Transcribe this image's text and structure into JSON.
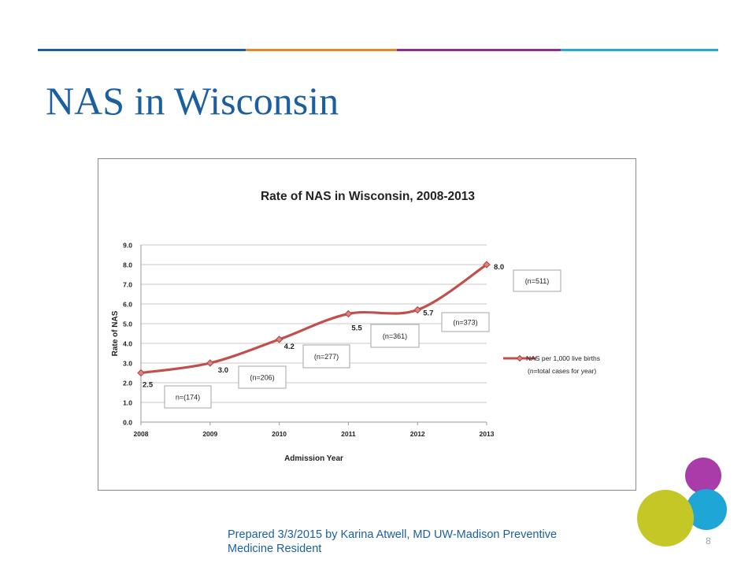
{
  "slide": {
    "title": "NAS in Wisconsin",
    "footer": "Prepared 3/3/2015 by Karina Atwell, MD UW-Madison Preventive Medicine Resident",
    "page_number": "8",
    "accent_colors": [
      "#1c5fa0",
      "#e08a2b",
      "#8e2e8f",
      "#2aa8d6",
      "#c5c726",
      "#a93ca8",
      "#1ea6d7"
    ]
  },
  "chart_data": {
    "type": "line",
    "title": "Rate of NAS in Wisconsin, 2008-2013",
    "xlabel": "Admission Year",
    "ylabel": "Rate of NAS",
    "categories": [
      "2008",
      "2009",
      "2010",
      "2011",
      "2012",
      "2013"
    ],
    "ylim": [
      0,
      9
    ],
    "yticks": [
      "0.0",
      "1.0",
      "2.0",
      "3.0",
      "4.0",
      "5.0",
      "6.0",
      "7.0",
      "8.0",
      "9.0"
    ],
    "grid": true,
    "legend_position": "right",
    "series": [
      {
        "name": "NAS per 1,000 live births (n=total cases for year)",
        "values": [
          2.5,
          3.0,
          4.2,
          5.5,
          5.7,
          8.0
        ],
        "value_labels": [
          "2.5",
          "3.0",
          "4.2",
          "5.5",
          "5.7",
          "8.0"
        ],
        "color": "#c0504d"
      }
    ],
    "annotations": [
      "n=(174)",
      "(n=206)",
      "(n=277)",
      "(n=361)",
      "(n=373)",
      "(n=511)"
    ],
    "legend_lines": [
      "NAS per 1,000 live births",
      "(n=total cases for year)"
    ]
  }
}
